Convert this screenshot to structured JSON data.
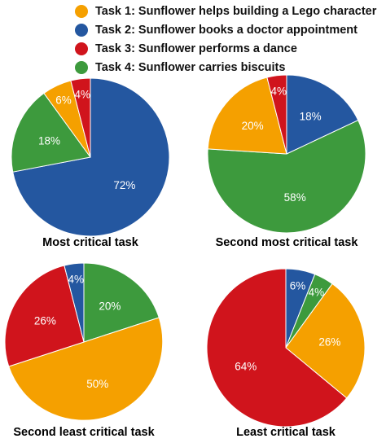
{
  "legend": [
    {
      "label": "Task 1: Sunflower helps building a Lego character",
      "color": "#f5a000"
    },
    {
      "label": "Task 2: Sunflower books a doctor appointment",
      "color": "#2457a0"
    },
    {
      "label": "Task 3: Sunflower performs a dance",
      "color": "#d0141c"
    },
    {
      "label": "Task 4: Sunflower carries biscuits",
      "color": "#3d9a3d"
    }
  ],
  "chart_data": [
    {
      "type": "pie",
      "title": "Most critical task",
      "slices": [
        {
          "task": "Task 2",
          "value": 72,
          "label": "72%",
          "color": "#2457a0"
        },
        {
          "task": "Task 4",
          "value": 18,
          "label": "18%",
          "color": "#3d9a3d"
        },
        {
          "task": "Task 1",
          "value": 6,
          "label": "6%",
          "color": "#f5a000"
        },
        {
          "task": "Task 3",
          "value": 4,
          "label": "4%",
          "color": "#d0141c"
        }
      ]
    },
    {
      "type": "pie",
      "title": "Second most critical task",
      "slices": [
        {
          "task": "Task 2",
          "value": 18,
          "label": "18%",
          "color": "#2457a0"
        },
        {
          "task": "Task 4",
          "value": 58,
          "label": "58%",
          "color": "#3d9a3d"
        },
        {
          "task": "Task 1",
          "value": 20,
          "label": "20%",
          "color": "#f5a000"
        },
        {
          "task": "Task 3",
          "value": 4,
          "label": "4%",
          "color": "#d0141c"
        }
      ]
    },
    {
      "type": "pie",
      "title": "Second least critical task",
      "slices": [
        {
          "task": "Task 4",
          "value": 20,
          "label": "20%",
          "color": "#3d9a3d"
        },
        {
          "task": "Task 1",
          "value": 50,
          "label": "50%",
          "color": "#f5a000"
        },
        {
          "task": "Task 3",
          "value": 26,
          "label": "26%",
          "color": "#d0141c"
        },
        {
          "task": "Task 2",
          "value": 4,
          "label": "4%",
          "color": "#2457a0"
        }
      ]
    },
    {
      "type": "pie",
      "title": "Least critical task",
      "slices": [
        {
          "task": "Task 2",
          "value": 6,
          "label": "6%",
          "color": "#2457a0"
        },
        {
          "task": "Task 4",
          "value": 4,
          "label": "4%",
          "color": "#3d9a3d"
        },
        {
          "task": "Task 1",
          "value": 26,
          "label": "26%",
          "color": "#f5a000"
        },
        {
          "task": "Task 3",
          "value": 64,
          "label": "64%",
          "color": "#d0141c"
        }
      ]
    }
  ]
}
